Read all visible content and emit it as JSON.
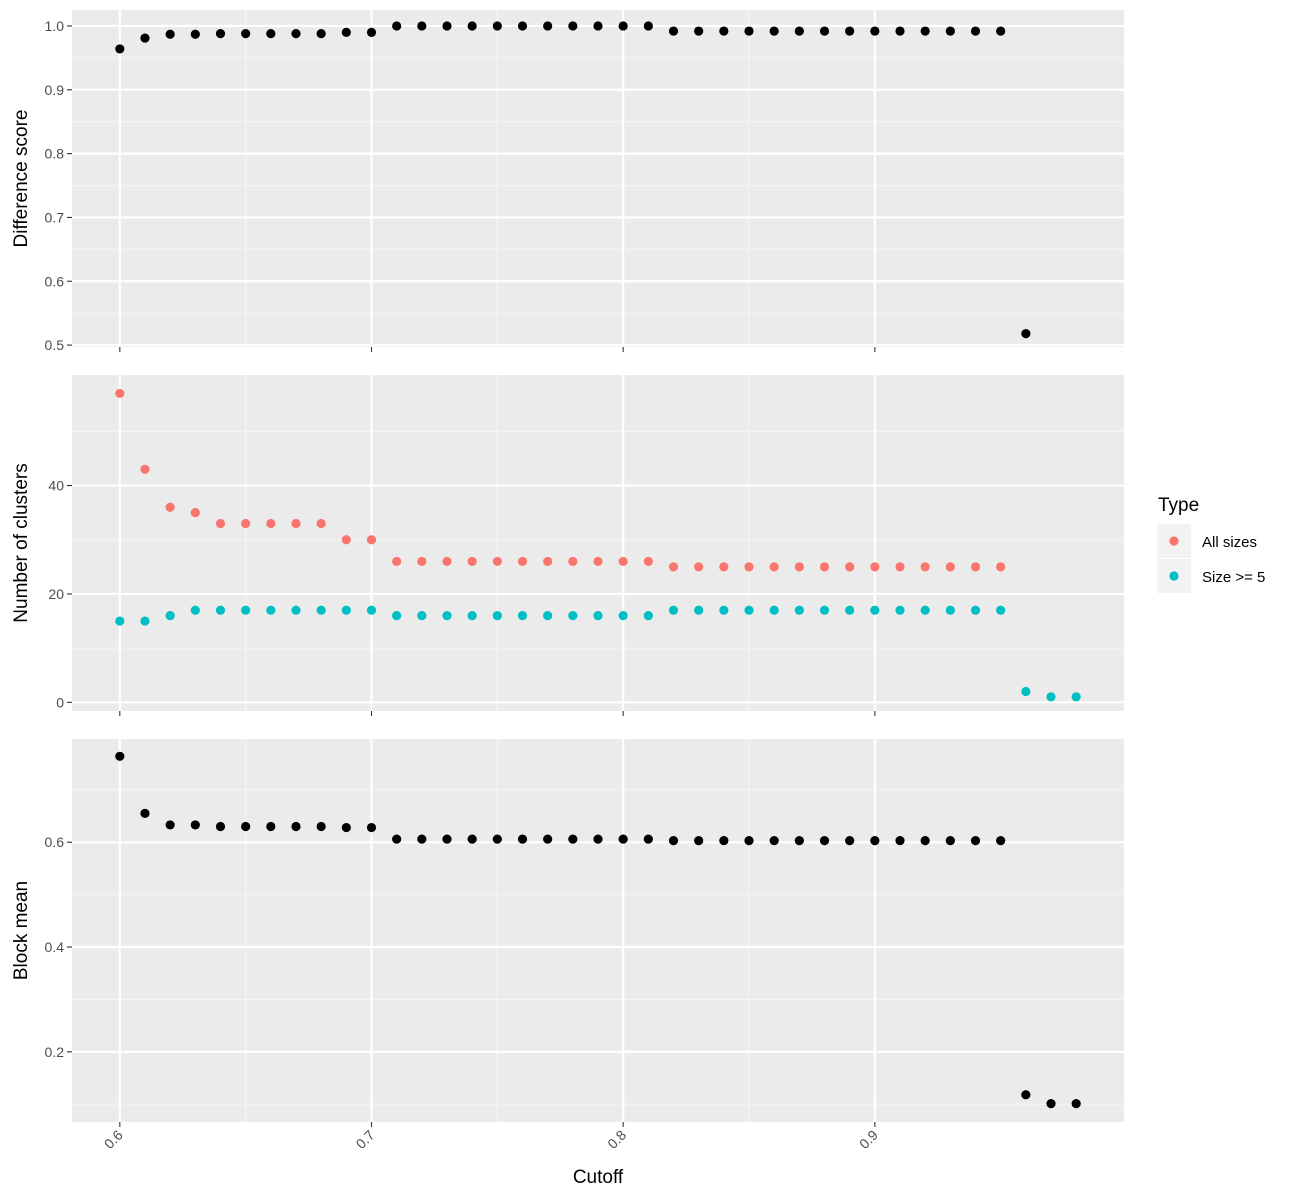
{
  "colors": {
    "panel_bg": "#ebebeb",
    "grid_major": "#ffffff",
    "grid_minor": "#f5f5f5",
    "tick": "#333333",
    "black_point": "#000000",
    "all_sizes": "#f8766d",
    "size_ge5": "#00bfc4"
  },
  "chart_data": {
    "type": "scatter",
    "xlabel": "Cutoff",
    "x_ticks": [
      "0.6",
      "0.7",
      "0.8",
      "0.9"
    ],
    "x_tick_values": [
      0.6,
      0.7,
      0.8,
      0.9
    ],
    "xlim": [
      0.581,
      0.999
    ],
    "legend": {
      "title": "Type",
      "placement": "right",
      "entries": [
        {
          "label": "All sizes",
          "color": "#f8766d"
        },
        {
          "label": "Size >= 5",
          "color": "#00bfc4"
        }
      ]
    },
    "panels": [
      {
        "ylabel": "Difference score",
        "ylim": [
          0.497,
          1.025
        ],
        "y_ticks": [
          "0.5",
          "0.6",
          "0.7",
          "0.8",
          "0.9",
          "1.0"
        ],
        "y_tick_values": [
          0.5,
          0.6,
          0.7,
          0.8,
          0.9,
          1.0
        ],
        "series": [
          {
            "color": "#000000",
            "x": [
              0.6,
              0.61,
              0.62,
              0.63,
              0.64,
              0.65,
              0.66,
              0.67,
              0.68,
              0.69,
              0.7,
              0.71,
              0.72,
              0.73,
              0.74,
              0.75,
              0.76,
              0.77,
              0.78,
              0.79,
              0.8,
              0.81,
              0.82,
              0.83,
              0.84,
              0.85,
              0.86,
              0.87,
              0.88,
              0.89,
              0.9,
              0.91,
              0.92,
              0.93,
              0.94,
              0.95,
              0.96
            ],
            "y": [
              0.964,
              0.981,
              0.987,
              0.987,
              0.988,
              0.988,
              0.988,
              0.988,
              0.988,
              0.99,
              0.99,
              1.0,
              1.0,
              1.0,
              1.0,
              1.0,
              1.0,
              1.0,
              1.0,
              1.0,
              1.0,
              1.0,
              0.992,
              0.992,
              0.992,
              0.992,
              0.992,
              0.992,
              0.992,
              0.992,
              0.992,
              0.992,
              0.992,
              0.992,
              0.992,
              0.992,
              0.518
            ]
          }
        ]
      },
      {
        "ylabel": "Number of clusters",
        "ylim": [
          -1.6,
          60.4
        ],
        "y_ticks": [
          "0",
          "20",
          "40"
        ],
        "y_tick_values": [
          0,
          20,
          40
        ],
        "series": [
          {
            "name": "All sizes",
            "color": "#f8766d",
            "x": [
              0.6,
              0.61,
              0.62,
              0.63,
              0.64,
              0.65,
              0.66,
              0.67,
              0.68,
              0.69,
              0.7,
              0.71,
              0.72,
              0.73,
              0.74,
              0.75,
              0.76,
              0.77,
              0.78,
              0.79,
              0.8,
              0.81,
              0.82,
              0.83,
              0.84,
              0.85,
              0.86,
              0.87,
              0.88,
              0.89,
              0.9,
              0.91,
              0.92,
              0.93,
              0.94,
              0.95
            ],
            "y": [
              57,
              43,
              36,
              35,
              33,
              33,
              33,
              33,
              33,
              30,
              30,
              26,
              26,
              26,
              26,
              26,
              26,
              26,
              26,
              26,
              26,
              26,
              25,
              25,
              25,
              25,
              25,
              25,
              25,
              25,
              25,
              25,
              25,
              25,
              25,
              25
            ]
          },
          {
            "name": "Size >= 5",
            "color": "#00bfc4",
            "x": [
              0.6,
              0.61,
              0.62,
              0.63,
              0.64,
              0.65,
              0.66,
              0.67,
              0.68,
              0.69,
              0.7,
              0.71,
              0.72,
              0.73,
              0.74,
              0.75,
              0.76,
              0.77,
              0.78,
              0.79,
              0.8,
              0.81,
              0.82,
              0.83,
              0.84,
              0.85,
              0.86,
              0.87,
              0.88,
              0.89,
              0.9,
              0.91,
              0.92,
              0.93,
              0.94,
              0.95,
              0.96,
              0.97,
              0.98
            ],
            "y": [
              15,
              15,
              16,
              17,
              17,
              17,
              17,
              17,
              17,
              17,
              17,
              16,
              16,
              16,
              16,
              16,
              16,
              16,
              16,
              16,
              16,
              16,
              17,
              17,
              17,
              17,
              17,
              17,
              17,
              17,
              17,
              17,
              17,
              17,
              17,
              17,
              2,
              1,
              1
            ]
          }
        ]
      },
      {
        "ylabel": "Block mean",
        "ylim": [
          0.066,
          0.797
        ],
        "y_ticks": [
          "0.2",
          "0.4",
          "0.6"
        ],
        "y_tick_values": [
          0.2,
          0.4,
          0.6
        ],
        "series": [
          {
            "color": "#000000",
            "x": [
              0.6,
              0.61,
              0.62,
              0.63,
              0.64,
              0.65,
              0.66,
              0.67,
              0.68,
              0.69,
              0.7,
              0.71,
              0.72,
              0.73,
              0.74,
              0.75,
              0.76,
              0.77,
              0.78,
              0.79,
              0.8,
              0.81,
              0.82,
              0.83,
              0.84,
              0.85,
              0.86,
              0.87,
              0.88,
              0.89,
              0.9,
              0.91,
              0.92,
              0.93,
              0.94,
              0.95,
              0.96,
              0.97,
              0.98
            ],
            "y": [
              0.764,
              0.655,
              0.633,
              0.633,
              0.63,
              0.63,
              0.63,
              0.63,
              0.63,
              0.628,
              0.628,
              0.606,
              0.606,
              0.606,
              0.606,
              0.606,
              0.606,
              0.606,
              0.606,
              0.606,
              0.606,
              0.606,
              0.603,
              0.603,
              0.603,
              0.603,
              0.603,
              0.603,
              0.603,
              0.603,
              0.603,
              0.603,
              0.603,
              0.603,
              0.603,
              0.603,
              0.118,
              0.101,
              0.101
            ]
          }
        ]
      }
    ]
  }
}
